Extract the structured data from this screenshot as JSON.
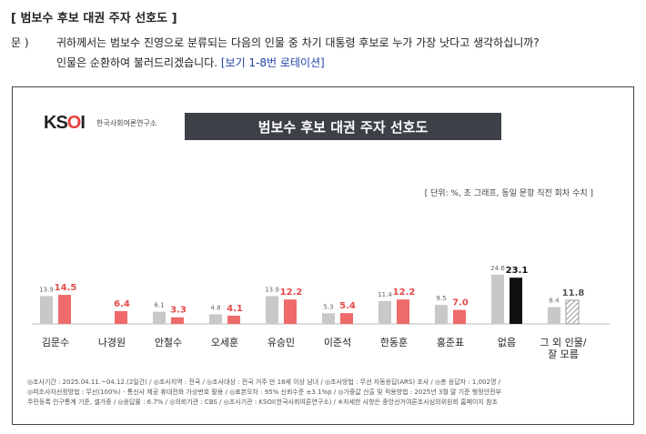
{
  "header": {
    "title": "[ 범보수 후보 대권 주자 선호도 ]",
    "q_label": "문 )",
    "q_text1": "귀하께서는 범보수 진영으로 분류되는 다음의 인물 중 차기 대통령 후보로 누가 가장 낫다고 생각하십니까?",
    "q_text2_a": "인물은 순환하여 불러드리겠습니다. ",
    "q_text2_b": "[보기 1-8번 로테이션]"
  },
  "logo": {
    "mark_k": "K",
    "mark_s": "S",
    "mark_o": "O",
    "mark_i": "I",
    "sub": "한국사회여론연구소"
  },
  "banner": "범보수 후보 대권 주자 선호도",
  "unit_note": "[ 단위: %, 초 그래프, 동일 문항 직전 회차 수치 ]",
  "chart_data": {
    "type": "bar",
    "title": "범보수 후보 대권 주자 선호도",
    "categories": [
      "김문수",
      "나경원",
      "안철수",
      "오세훈",
      "유승민",
      "이준석",
      "한동훈",
      "홍준표",
      "없음",
      "그 외 인물/\n잘 모름"
    ],
    "series": [
      {
        "values": [
          13.9,
          null,
          6.1,
          4.8,
          13.9,
          5.3,
          11.4,
          9.5,
          24.6,
          8.4
        ]
      },
      {
        "values": [
          14.5,
          6.4,
          3.3,
          4.1,
          12.2,
          5.4,
          12.2,
          7.0,
          23.1,
          11.8
        ]
      }
    ],
    "colors": {
      "prev": "#c8c8c8",
      "curr": "#ef6a6a",
      "none_curr": "#111111",
      "other_curr": "hatched-gray"
    },
    "ylim": [
      0,
      30
    ],
    "grid": false
  },
  "footer": {
    "line1": "◎조사기간 : 2025.04.11.~04.12.(2일간)  / ◎조사지역 : 전국 / ◎조사대상 : 전국 거주 만 18세 이상 남녀 / ◎조사방법 : 무선 자동응답(ARS) 조사 / ◎총 응답자 : 1,002명 /",
    "line2": "◎피조사자선정방법 : 무선(100%) - 통신사 제공 휴대전화 가상번호 활용 / ◎표본오차 : 95% 신뢰수준 ±3.1%p / ◎가중값 산출 및 적용방법 : 2025년 3월 말 기준 행정안전부",
    "line3": "주민등록 인구통계 기준, 셀가중 / ◎응답률 : 6.7% / ◎의뢰기관 : CBS / ◎조사기관 : KSOI(한국사회여론연구소) / ※자세한 사항은 중앙선거여론조사심의위원회 홈페이지 참조"
  }
}
